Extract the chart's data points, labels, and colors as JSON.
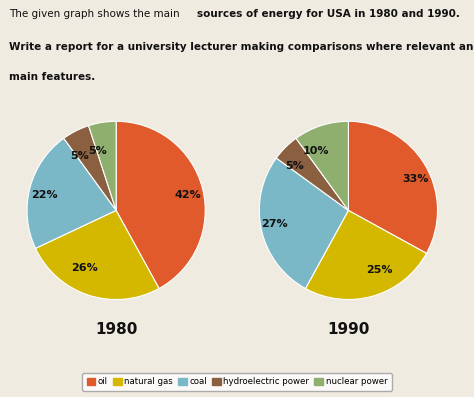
{
  "title_line1_normal": "The given graph shows the main ",
  "title_line1_bold": "sources of energy for USA in 1980 and 1990.",
  "title_line2": "Write a report for a university lecturer making comparisons where relevant and reporting the\nmain features.",
  "pie1_label": "1980",
  "pie2_label": "1990",
  "categories": [
    "oil",
    "natural gas",
    "coal",
    "hydroelectric power",
    "nuclear power"
  ],
  "colors": [
    "#e05a2b",
    "#d4b800",
    "#7ab8c8",
    "#8b6040",
    "#8faf6e"
  ],
  "values_1980": [
    42,
    26,
    22,
    5,
    5
  ],
  "values_1990": [
    33,
    25,
    27,
    5,
    10
  ],
  "labels_1980": [
    "42%",
    "26%",
    "22%",
    "5%",
    "5%"
  ],
  "labels_1990": [
    "33%",
    "25%",
    "27%",
    "5%",
    "10%"
  ],
  "bg_color": "#f0ebe0",
  "text_color": "#111111",
  "legend_box_color": "#ffffff",
  "legend_box_edge": "#999999",
  "startangle_1980": 72,
  "startangle_1990": 72
}
